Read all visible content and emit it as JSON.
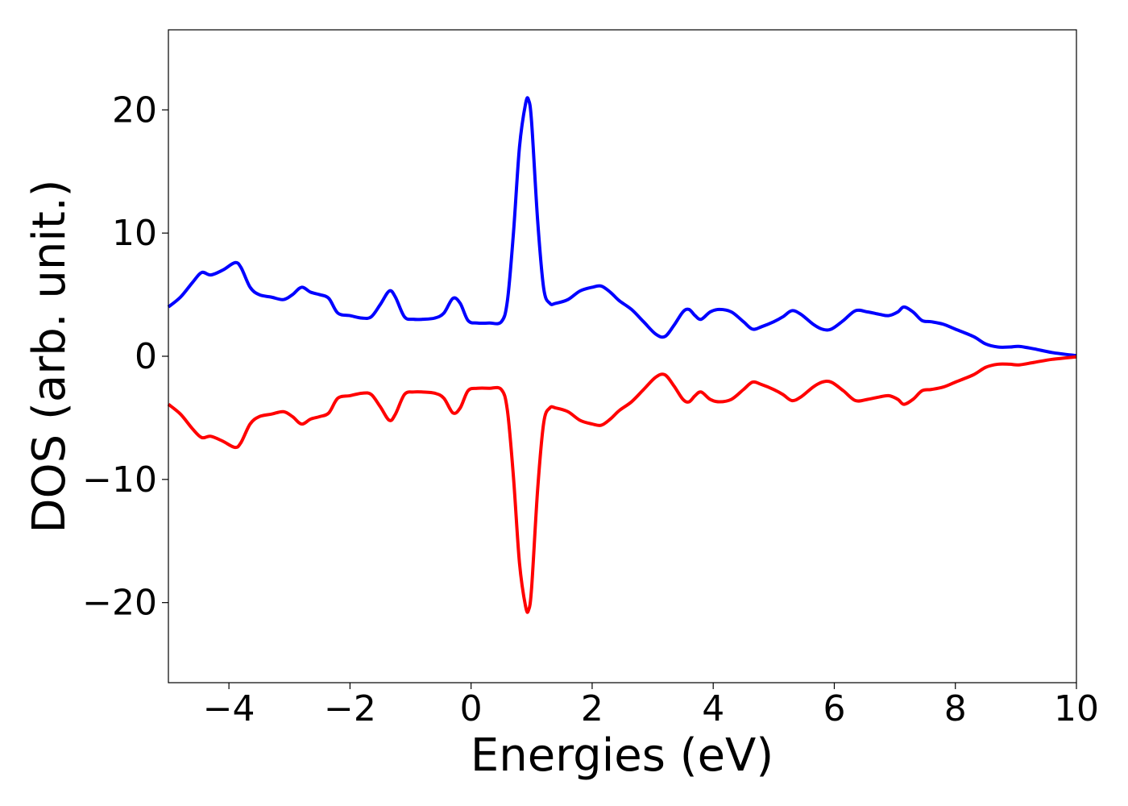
{
  "chart_data": {
    "type": "line",
    "title": "",
    "xlabel": "Energies (eV)",
    "ylabel": "DOS (arb. unit.)",
    "xlim": [
      -5,
      10
    ],
    "ylim": [
      -26.5,
      26.5
    ],
    "grid": false,
    "xticks": [
      -4,
      -2,
      0,
      2,
      4,
      6,
      8,
      10
    ],
    "xtick_labels": [
      "−4",
      "−2",
      "0",
      "2",
      "4",
      "6",
      "8",
      "10"
    ],
    "yticks": [
      -20,
      -10,
      0,
      10,
      20
    ],
    "ytick_labels": [
      "−20",
      "−10",
      "0",
      "10",
      "20"
    ],
    "series": [
      {
        "color": "#0000ff",
        "x": [
          -5.0,
          -4.8,
          -4.6,
          -4.45,
          -4.3,
          -4.1,
          -3.9,
          -3.8,
          -3.65,
          -3.5,
          -3.3,
          -3.1,
          -2.95,
          -2.8,
          -2.65,
          -2.5,
          -2.35,
          -2.2,
          -2.0,
          -1.8,
          -1.65,
          -1.5,
          -1.35,
          -1.25,
          -1.1,
          -0.95,
          -0.8,
          -0.6,
          -0.45,
          -0.3,
          -0.18,
          -0.05,
          0.1,
          0.3,
          0.5,
          0.6,
          0.7,
          0.8,
          0.9,
          0.95,
          1.0,
          1.1,
          1.2,
          1.3,
          1.4,
          1.6,
          1.8,
          2.0,
          2.15,
          2.3,
          2.45,
          2.65,
          2.85,
          3.05,
          3.2,
          3.35,
          3.5,
          3.6,
          3.7,
          3.8,
          3.95,
          4.1,
          4.3,
          4.5,
          4.65,
          4.8,
          5.0,
          5.15,
          5.3,
          5.45,
          5.65,
          5.8,
          5.95,
          6.15,
          6.35,
          6.55,
          6.75,
          6.9,
          7.05,
          7.15,
          7.3,
          7.45,
          7.6,
          7.8,
          8.0,
          8.3,
          8.5,
          8.7,
          8.9,
          9.05,
          9.3,
          9.6,
          10.0
        ],
        "y": [
          4.0,
          4.8,
          6.0,
          6.8,
          6.6,
          7.0,
          7.6,
          7.2,
          5.6,
          5.0,
          4.8,
          4.6,
          5.0,
          5.6,
          5.2,
          5.0,
          4.7,
          3.5,
          3.3,
          3.1,
          3.2,
          4.2,
          5.3,
          4.8,
          3.2,
          3.0,
          3.0,
          3.1,
          3.5,
          4.7,
          4.3,
          2.9,
          2.7,
          2.7,
          2.8,
          4.5,
          10.0,
          17.0,
          20.5,
          20.8,
          19.0,
          11.0,
          5.5,
          4.3,
          4.3,
          4.6,
          5.3,
          5.6,
          5.7,
          5.2,
          4.5,
          3.8,
          2.8,
          1.8,
          1.6,
          2.5,
          3.6,
          3.8,
          3.3,
          3.0,
          3.6,
          3.8,
          3.6,
          2.8,
          2.2,
          2.4,
          2.8,
          3.2,
          3.7,
          3.4,
          2.6,
          2.2,
          2.2,
          2.9,
          3.7,
          3.6,
          3.4,
          3.3,
          3.6,
          4.0,
          3.6,
          2.9,
          2.8,
          2.6,
          2.2,
          1.6,
          1.0,
          0.75,
          0.75,
          0.8,
          0.6,
          0.3,
          0.05
        ]
      },
      {
        "color": "#ff0000",
        "x": [
          -5.0,
          -4.8,
          -4.6,
          -4.45,
          -4.3,
          -4.1,
          -3.9,
          -3.8,
          -3.65,
          -3.5,
          -3.3,
          -3.1,
          -2.95,
          -2.8,
          -2.65,
          -2.5,
          -2.35,
          -2.2,
          -2.0,
          -1.8,
          -1.65,
          -1.5,
          -1.35,
          -1.25,
          -1.1,
          -0.95,
          -0.8,
          -0.6,
          -0.45,
          -0.3,
          -0.18,
          -0.05,
          0.1,
          0.3,
          0.5,
          0.6,
          0.7,
          0.8,
          0.9,
          0.95,
          1.0,
          1.1,
          1.2,
          1.3,
          1.4,
          1.6,
          1.8,
          2.0,
          2.15,
          2.3,
          2.45,
          2.65,
          2.85,
          3.05,
          3.2,
          3.35,
          3.5,
          3.6,
          3.7,
          3.8,
          3.95,
          4.1,
          4.3,
          4.5,
          4.65,
          4.8,
          5.0,
          5.15,
          5.3,
          5.45,
          5.65,
          5.8,
          5.95,
          6.15,
          6.35,
          6.55,
          6.75,
          6.9,
          7.05,
          7.15,
          7.3,
          7.45,
          7.6,
          7.8,
          8.0,
          8.3,
          8.5,
          8.7,
          8.9,
          9.05,
          9.3,
          9.6,
          10.0
        ],
        "y": [
          -3.9,
          -4.7,
          -5.9,
          -6.6,
          -6.5,
          -6.9,
          -7.4,
          -7.0,
          -5.5,
          -4.9,
          -4.7,
          -4.5,
          -4.9,
          -5.5,
          -5.1,
          -4.9,
          -4.6,
          -3.4,
          -3.2,
          -3.0,
          -3.1,
          -4.1,
          -5.2,
          -4.7,
          -3.1,
          -2.9,
          -2.9,
          -3.0,
          -3.4,
          -4.6,
          -4.2,
          -2.8,
          -2.6,
          -2.6,
          -2.7,
          -4.4,
          -9.8,
          -16.8,
          -20.3,
          -20.6,
          -18.8,
          -10.8,
          -5.4,
          -4.2,
          -4.2,
          -4.5,
          -5.2,
          -5.5,
          -5.6,
          -5.1,
          -4.4,
          -3.7,
          -2.7,
          -1.7,
          -1.5,
          -2.4,
          -3.5,
          -3.7,
          -3.2,
          -2.9,
          -3.5,
          -3.7,
          -3.5,
          -2.7,
          -2.1,
          -2.3,
          -2.7,
          -3.1,
          -3.6,
          -3.3,
          -2.5,
          -2.1,
          -2.1,
          -2.8,
          -3.6,
          -3.5,
          -3.3,
          -3.2,
          -3.5,
          -3.9,
          -3.5,
          -2.8,
          -2.7,
          -2.5,
          -2.1,
          -1.5,
          -0.9,
          -0.65,
          -0.65,
          -0.7,
          -0.5,
          -0.25,
          -0.05
        ]
      }
    ]
  }
}
